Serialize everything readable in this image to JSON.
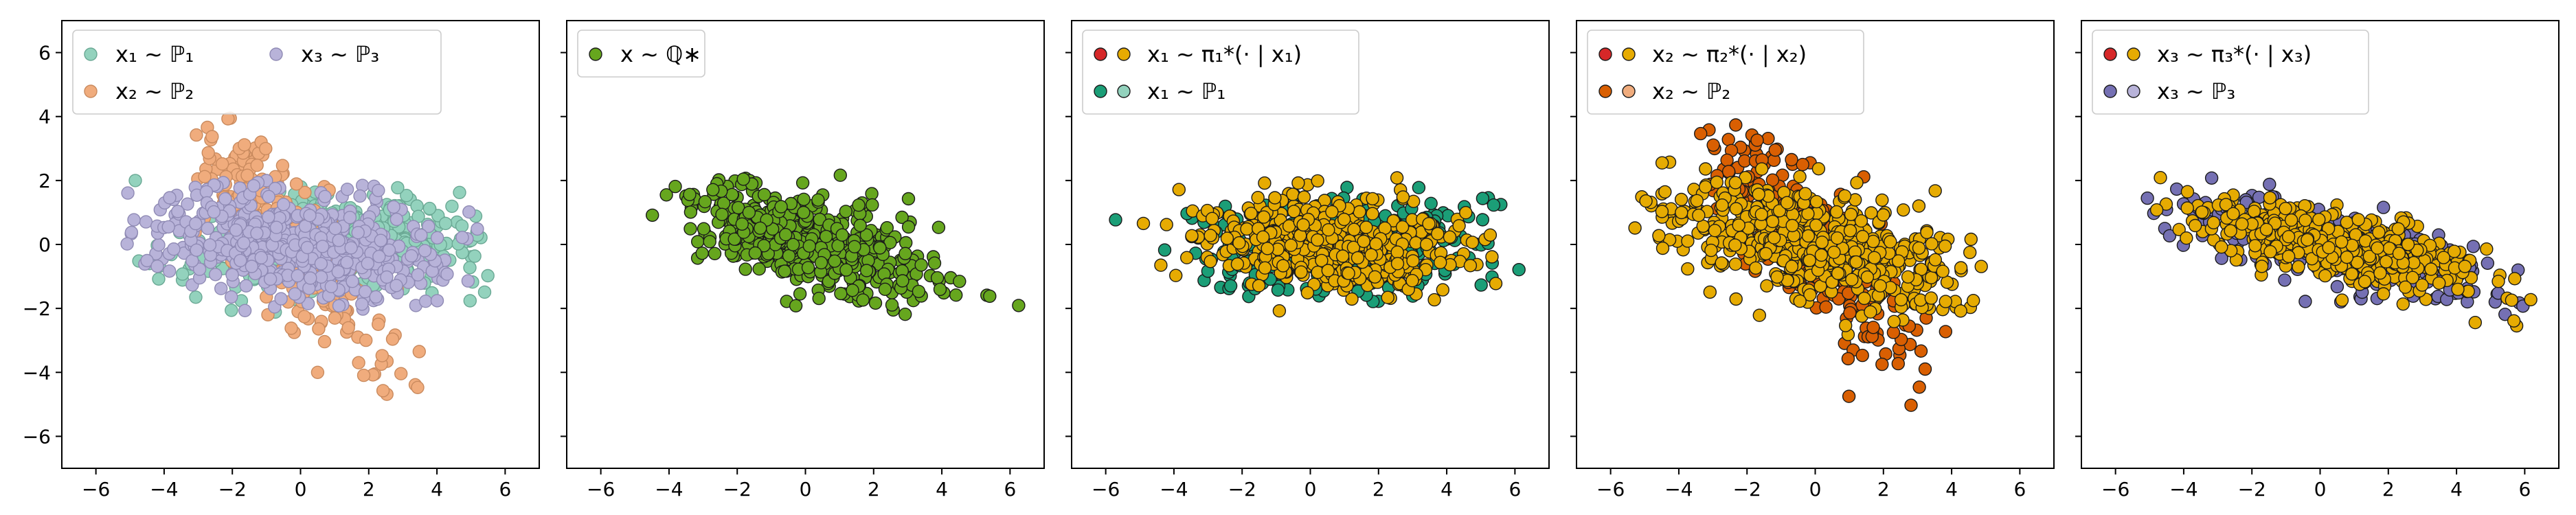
{
  "figure": {
    "background": "#ffffff"
  },
  "chart_data": [
    {
      "type": "scatter",
      "title": "",
      "xlabel": "",
      "ylabel": "",
      "xlim": [
        -7,
        7
      ],
      "ylim": [
        -7,
        7
      ],
      "xticks": [
        -6,
        -4,
        -2,
        0,
        2,
        4,
        6
      ],
      "yticks": [
        -6,
        -4,
        -2,
        0,
        2,
        4,
        6
      ],
      "show_yticklabels": true,
      "grid": false,
      "legend": {
        "placement": "top-left",
        "ncol": 2,
        "entries": [
          {
            "label": "x₁ ∼ ℙ₁",
            "series": "x1",
            "colors": [
              "#93d2bd"
            ]
          },
          {
            "label": "x₂ ∼ ℙ₂",
            "series": "x2",
            "colors": [
              "#f0ac7d"
            ]
          },
          {
            "label": "x₃ ∼ ℙ₃",
            "series": "x3",
            "colors": [
              "#b8b3d9"
            ]
          }
        ]
      },
      "series": [
        {
          "id": "x1",
          "color": "#93d2bd",
          "edge": "#6aa894",
          "cloud": {
            "n": 420,
            "center": [
              1.0,
              0.0
            ],
            "std": [
              2.1,
              0.8
            ],
            "rho": 0.05,
            "xrange": [
              -6.5,
              5.6
            ],
            "yrange": [
              -2.4,
              2.0
            ]
          }
        },
        {
          "id": "x2",
          "color": "#f0ac7d",
          "edge": "#c98a5e",
          "cloud": {
            "n": 260,
            "center": [
              -0.5,
              0.3
            ],
            "std": [
              1.6,
              2.2
            ],
            "rho": -0.85,
            "xrange": [
              -3.5,
              3.6
            ],
            "yrange": [
              -4.8,
              4.0
            ]
          }
        },
        {
          "id": "x3",
          "color": "#b8b3d9",
          "edge": "#8f8ab4",
          "cloud": {
            "n": 520,
            "center": [
              0.0,
              0.0
            ],
            "std": [
              2.3,
              0.9
            ],
            "rho": -0.3,
            "xrange": [
              -5.2,
              5.5
            ],
            "yrange": [
              -2.1,
              2.0
            ]
          }
        }
      ]
    },
    {
      "type": "scatter",
      "title": "",
      "xlabel": "",
      "ylabel": "",
      "xlim": [
        -7,
        7
      ],
      "ylim": [
        -7,
        7
      ],
      "xticks": [
        -6,
        -4,
        -2,
        0,
        2,
        4,
        6
      ],
      "yticks": [
        -6,
        -4,
        -2,
        0,
        2,
        4,
        6
      ],
      "show_yticklabels": false,
      "grid": false,
      "legend": {
        "placement": "top-left",
        "ncol": 1,
        "entries": [
          {
            "label": "x ∼ ℚ∗",
            "series": "q",
            "colors": [
              "#66a61e"
            ]
          }
        ]
      },
      "series": [
        {
          "id": "q",
          "color": "#66a61e",
          "edge": "#1a1a1a",
          "cloud": {
            "n": 480,
            "center": [
              0.3,
              0.0
            ],
            "std": [
              1.9,
              0.95
            ],
            "rho": -0.6,
            "xrange": [
              -4.8,
              6.3
            ],
            "yrange": [
              -2.3,
              2.3
            ]
          }
        }
      ]
    },
    {
      "type": "scatter",
      "title": "",
      "xlabel": "",
      "ylabel": "",
      "xlim": [
        -7,
        7
      ],
      "ylim": [
        -7,
        7
      ],
      "xticks": [
        -6,
        -4,
        -2,
        0,
        2,
        4,
        6
      ],
      "yticks": [
        -6,
        -4,
        -2,
        0,
        2,
        4,
        6
      ],
      "show_yticklabels": false,
      "grid": false,
      "legend": {
        "placement": "top-left",
        "ncol": 1,
        "entries": [
          {
            "label": "x₁ ∼ π₁*(· | x₁)",
            "series": "map1",
            "colors": [
              "#d62728",
              "#e6ab02"
            ]
          },
          {
            "label": "x₁ ∼ ℙ₁",
            "series": "x1",
            "colors": [
              "#1b9e77",
              "#93d2bd"
            ]
          }
        ]
      },
      "series": [
        {
          "id": "x1",
          "color": "#1b9e77",
          "edge": "#1a1a1a",
          "cloud": {
            "n": 300,
            "center": [
              0.8,
              0.0
            ],
            "std": [
              2.4,
              0.8
            ],
            "rho": 0.05,
            "xrange": [
              -6.0,
              6.3
            ],
            "yrange": [
              -1.8,
              1.8
            ]
          }
        },
        {
          "id": "map1",
          "color": "#e6ab02",
          "edge": "#1a1a1a",
          "cloud": {
            "n": 460,
            "center": [
              0.6,
              0.0
            ],
            "std": [
              2.0,
              0.75
            ],
            "rho": -0.15,
            "xrange": [
              -5.2,
              5.8
            ],
            "yrange": [
              -2.3,
              2.4
            ]
          }
        }
      ]
    },
    {
      "type": "scatter",
      "title": "",
      "xlabel": "",
      "ylabel": "",
      "xlim": [
        -7,
        7
      ],
      "ylim": [
        -7,
        7
      ],
      "xticks": [
        -6,
        -4,
        -2,
        0,
        2,
        4,
        6
      ],
      "yticks": [
        -6,
        -4,
        -2,
        0,
        2,
        4,
        6
      ],
      "show_yticklabels": false,
      "grid": false,
      "legend": {
        "placement": "top-left",
        "ncol": 1,
        "entries": [
          {
            "label": "x₂ ∼ π₂*(· | x₂)",
            "series": "map2",
            "colors": [
              "#d62728",
              "#e6ab02"
            ]
          },
          {
            "label": "x₂ ∼ ℙ₂",
            "series": "x2",
            "colors": [
              "#d95f02",
              "#f0ac7d"
            ]
          }
        ]
      },
      "series": [
        {
          "id": "x2",
          "color": "#d95f02",
          "edge": "#1a1a1a",
          "cloud": {
            "n": 280,
            "center": [
              -0.3,
              0.3
            ],
            "std": [
              1.6,
              2.1
            ],
            "rho": -0.85,
            "xrange": [
              -3.5,
              4.0
            ],
            "yrange": [
              -5.7,
              4.0
            ]
          }
        },
        {
          "id": "map2",
          "color": "#e6ab02",
          "edge": "#1a1a1a",
          "cloud": {
            "n": 520,
            "center": [
              0.0,
              0.0
            ],
            "std": [
              2.3,
              1.0
            ],
            "rho": -0.55,
            "xrange": [
              -5.3,
              5.0
            ],
            "yrange": [
              -2.9,
              2.6
            ]
          }
        }
      ]
    },
    {
      "type": "scatter",
      "title": "",
      "xlabel": "",
      "ylabel": "",
      "xlim": [
        -7,
        7
      ],
      "ylim": [
        -7,
        7
      ],
      "xticks": [
        -6,
        -4,
        -2,
        0,
        2,
        4,
        6
      ],
      "yticks": [
        -6,
        -4,
        -2,
        0,
        2,
        4,
        6
      ],
      "show_yticklabels": false,
      "grid": false,
      "legend": {
        "placement": "top-left",
        "ncol": 1,
        "entries": [
          {
            "label": "x₃ ∼ π₃*(· | x₃)",
            "series": "map3",
            "colors": [
              "#d62728",
              "#e6ab02"
            ]
          },
          {
            "label": "x₃ ∼ ℙ₃",
            "series": "x3",
            "colors": [
              "#7570b3",
              "#b8b3d9"
            ]
          }
        ]
      },
      "series": [
        {
          "id": "x3",
          "color": "#7570b3",
          "edge": "#1a1a1a",
          "cloud": {
            "n": 260,
            "center": [
              0.3,
              0.0
            ],
            "std": [
              2.6,
              0.9
            ],
            "rho": -0.75,
            "xrange": [
              -5.5,
              6.8
            ],
            "yrange": [
              -2.5,
              2.3
            ]
          }
        },
        {
          "id": "map3",
          "color": "#e6ab02",
          "edge": "#1a1a1a",
          "cloud": {
            "n": 480,
            "center": [
              0.3,
              0.0
            ],
            "std": [
              2.2,
              0.75
            ],
            "rho": -0.7,
            "xrange": [
              -4.8,
              6.5
            ],
            "yrange": [
              -2.6,
              2.3
            ]
          }
        }
      ]
    }
  ]
}
